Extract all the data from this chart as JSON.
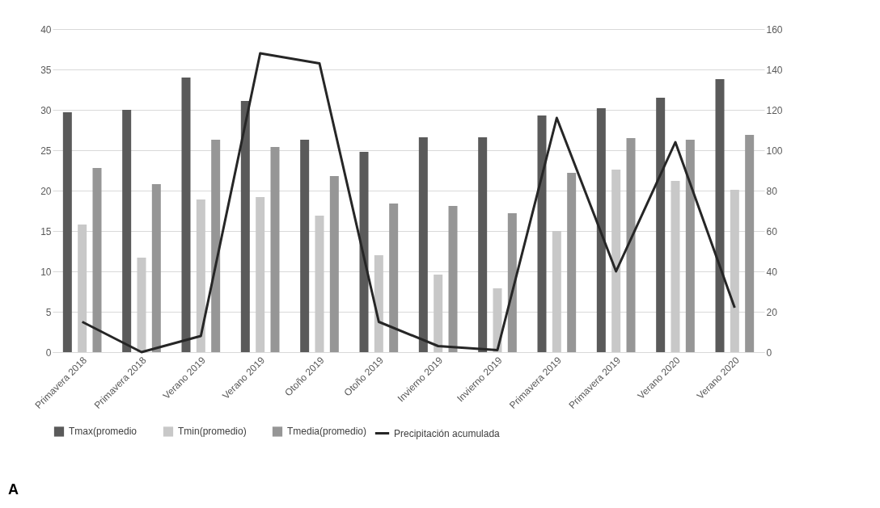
{
  "chart_data": {
    "type": "bar",
    "categories": [
      "Primavera 2018",
      "Primavera 2018",
      "Verano 2019",
      "Verano 2019",
      "Otoño 2019",
      "Otoño 2019",
      "Invierno 2019",
      "Invierno 2019",
      "Primavera 2019",
      "Primavera 2019",
      "Verano 2020",
      "Verano 2020"
    ],
    "series": [
      {
        "name": "Tmax(promedio",
        "color": "#5a5a5a",
        "values": [
          29.7,
          30.0,
          34.0,
          31.1,
          26.3,
          24.8,
          26.6,
          26.6,
          29.3,
          30.2,
          31.5,
          33.8
        ]
      },
      {
        "name": "Tmin(promedio)",
        "color": "#c8c8c8",
        "values": [
          15.8,
          11.7,
          18.9,
          19.2,
          16.9,
          12.0,
          9.6,
          7.9,
          15.0,
          22.6,
          21.2,
          20.1
        ]
      },
      {
        "name": "Tmedia(promedio)",
        "color": "#969696",
        "values": [
          22.8,
          20.8,
          26.3,
          25.4,
          21.8,
          18.4,
          18.1,
          17.2,
          22.2,
          26.5,
          26.3,
          26.9
        ]
      },
      {
        "name": "Precipitación acumulada",
        "type": "line",
        "axis": "y2",
        "color": "#262626",
        "values": [
          15,
          0,
          8,
          148,
          143,
          15,
          3,
          1,
          116,
          40,
          104,
          22
        ]
      }
    ],
    "ylim": [
      0,
      40
    ],
    "yticks": [
      0,
      5,
      10,
      15,
      20,
      25,
      30,
      35,
      40
    ],
    "y2lim": [
      0,
      160
    ],
    "y2ticks": [
      0,
      20,
      40,
      60,
      80,
      100,
      120,
      140,
      160
    ],
    "grid": "y",
    "legend": "bottom",
    "annotations": [
      "A"
    ]
  }
}
